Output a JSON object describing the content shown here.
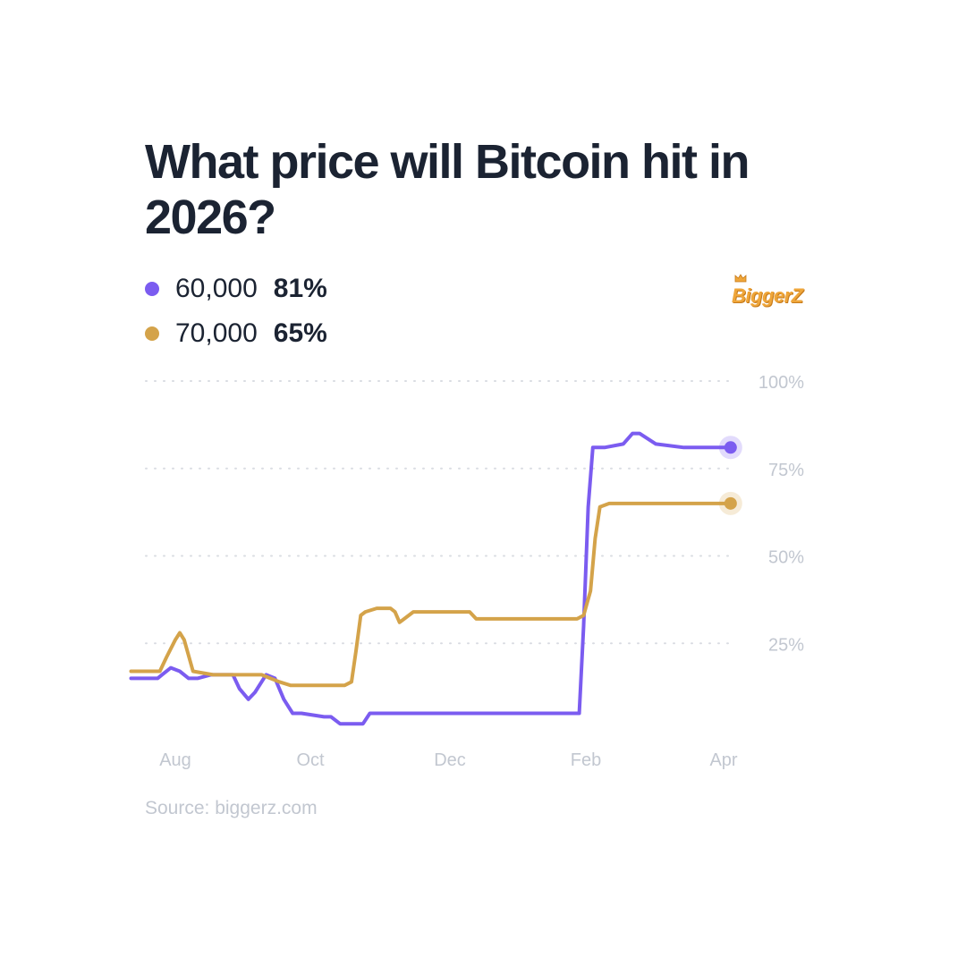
{
  "header": {
    "title": "What price will Bitcoin hit in 2026?"
  },
  "legend": [
    {
      "name": "60,000",
      "value": "81%",
      "color": "#7b5cf0"
    },
    {
      "name": "70,000",
      "value": "65%",
      "color": "#d4a34a"
    }
  ],
  "logo": {
    "text": "BiggerZ",
    "color": "#efa63a"
  },
  "footer": {
    "source": "Source: biggerz.com"
  },
  "chart_data": {
    "type": "line",
    "title": "What price will Bitcoin hit in 2026?",
    "xlabel": "",
    "ylabel": "",
    "x_tick_labels": [
      "Aug",
      "Oct",
      "Dec",
      "Feb",
      "Apr"
    ],
    "y_tick_labels": [
      "100%",
      "75%",
      "50%",
      "25%"
    ],
    "y_ticks": [
      100,
      75,
      50,
      25
    ],
    "ylim": [
      0,
      100
    ],
    "grid": "horizontal dotted",
    "legend_position": "top-left",
    "x_domain": [
      "Aug",
      "Apr"
    ],
    "series": [
      {
        "name": "60,000",
        "color": "#7b5cf0",
        "points": [
          [
            "Jul 12",
            15
          ],
          [
            "Jul 20",
            15
          ],
          [
            "Jul 24",
            15
          ],
          [
            "Jul 26",
            16
          ],
          [
            "Jul 30",
            18
          ],
          [
            "Aug 3",
            17
          ],
          [
            "Aug 7",
            15
          ],
          [
            "Aug 11",
            15
          ],
          [
            "Aug 17",
            16
          ],
          [
            "Aug 25",
            16
          ],
          [
            "Aug 27",
            16
          ],
          [
            "Aug 30",
            12
          ],
          [
            "Sep 3",
            9
          ],
          [
            "Sep 6",
            11
          ],
          [
            "Sep 11",
            16
          ],
          [
            "Sep 15",
            15
          ],
          [
            "Sep 19",
            9
          ],
          [
            "Sep 23",
            5
          ],
          [
            "Sep 27",
            5
          ],
          [
            "Oct 7",
            4
          ],
          [
            "Oct 10",
            4
          ],
          [
            "Oct 14",
            2
          ],
          [
            "Oct 24",
            2
          ],
          [
            "Oct 27",
            5
          ],
          [
            "Nov 12",
            5
          ],
          [
            "Nov 20",
            5
          ],
          [
            "Dec 4",
            5
          ],
          [
            "Dec 19",
            5
          ],
          [
            "Jan 13",
            5
          ],
          [
            "Jan 19",
            5
          ],
          [
            "Jan 27",
            5
          ],
          [
            "Jan 29",
            5
          ],
          [
            "Jan 31",
            30
          ],
          [
            "Feb 2",
            64
          ],
          [
            "Feb 4",
            81
          ],
          [
            "Feb 6",
            81
          ],
          [
            "Feb 9",
            81
          ],
          [
            "Feb 17",
            82
          ],
          [
            "Feb 21",
            85
          ],
          [
            "Feb 24",
            85
          ],
          [
            "Mar 3",
            82
          ],
          [
            "Mar 15",
            81
          ],
          [
            "Mar 31",
            81
          ],
          [
            "Apr 4",
            81
          ]
        ]
      },
      {
        "name": "70,000",
        "color": "#d4a34a",
        "points": [
          [
            "Jul 12",
            17
          ],
          [
            "Jul 20",
            17
          ],
          [
            "Jul 25",
            17
          ],
          [
            "Jul 28",
            21
          ],
          [
            "Aug 1",
            26
          ],
          [
            "Aug 3",
            28
          ],
          [
            "Aug 5",
            26
          ],
          [
            "Aug 9",
            17
          ],
          [
            "Aug 18",
            16
          ],
          [
            "Aug 29",
            16
          ],
          [
            "Sep 9",
            16
          ],
          [
            "Sep 13",
            15
          ],
          [
            "Sep 17",
            14
          ],
          [
            "Sep 22",
            13
          ],
          [
            "Sep 28",
            13
          ],
          [
            "Oct 8",
            13
          ],
          [
            "Oct 16",
            13
          ],
          [
            "Oct 19",
            14
          ],
          [
            "Oct 21",
            23
          ],
          [
            "Oct 23",
            33
          ],
          [
            "Oct 25",
            34
          ],
          [
            "Oct 30",
            35
          ],
          [
            "Nov 5",
            35
          ],
          [
            "Nov 7",
            34
          ],
          [
            "Nov 9",
            31
          ],
          [
            "Nov 11",
            32
          ],
          [
            "Nov 15",
            34
          ],
          [
            "Nov 19",
            34
          ],
          [
            "Dec 4",
            34
          ],
          [
            "Dec 10",
            34
          ],
          [
            "Dec 13",
            32
          ],
          [
            "Dec 23",
            32
          ],
          [
            "Jan 3",
            32
          ],
          [
            "Jan 21",
            32
          ],
          [
            "Jan 28",
            32
          ],
          [
            "Jan 31",
            33
          ],
          [
            "Feb 3",
            40
          ],
          [
            "Feb 5",
            55
          ],
          [
            "Feb 7",
            64
          ],
          [
            "Feb 11",
            65
          ],
          [
            "Feb 26",
            65
          ],
          [
            "Mar 13",
            65
          ],
          [
            "Mar 29",
            65
          ],
          [
            "Apr 4",
            65
          ]
        ]
      }
    ]
  }
}
